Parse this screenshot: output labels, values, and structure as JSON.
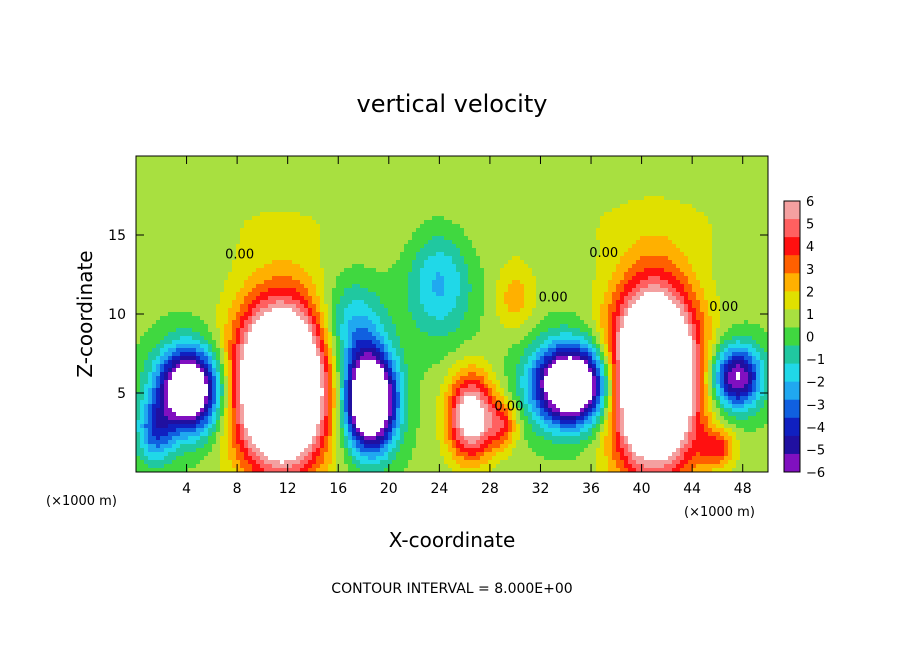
{
  "chart_data": {
    "type": "heatmap",
    "title": "vertical velocity",
    "xlabel": "X-coordinate",
    "ylabel": "Z-coordinate",
    "x_unit": "(×1000 m)",
    "x_unit_right": "(×1000 m)",
    "footer": "CONTOUR INTERVAL = 8.000E+00",
    "xlim": [
      0,
      50
    ],
    "ylim": [
      0,
      20
    ],
    "x_ticks": [
      4,
      8,
      12,
      16,
      20,
      24,
      28,
      32,
      36,
      40,
      44,
      48
    ],
    "y_ticks": [
      5,
      10,
      15
    ],
    "colorbar": {
      "range": [
        -6,
        6
      ],
      "ticks": [
        "6",
        "5",
        "4",
        "3",
        "2",
        "1",
        "0",
        "−1",
        "−2",
        "−3",
        "−4",
        "−5",
        "−6"
      ],
      "colors_high_to_low": [
        "#f4a0a0",
        "#ff6060",
        "#ff1010",
        "#ff6000",
        "#ffb000",
        "#e0e000",
        "#a8e040",
        "#40d840",
        "#20c8a0",
        "#20d8e8",
        "#20a8f0",
        "#1060e0",
        "#1020c0",
        "#2010a0",
        "#8010c0"
      ]
    },
    "contour_labels": [
      {
        "text": "0.00",
        "x": 8.2,
        "z": 13.5
      },
      {
        "text": "0.00",
        "x": 33.0,
        "z": 10.8
      },
      {
        "text": "0.00",
        "x": 37.0,
        "z": 13.6
      },
      {
        "text": "0.00",
        "x": 29.5,
        "z": 3.9
      },
      {
        "text": "0.00",
        "x": 46.5,
        "z": 10.2
      }
    ],
    "features": [
      {
        "name": "updraft",
        "x": 11.5,
        "z": 5.5,
        "sx": 3.5,
        "sz": 5.0,
        "w": 14
      },
      {
        "name": "updraft",
        "x": 41.0,
        "z": 6.0,
        "sx": 3.3,
        "sz": 5.5,
        "w": 14
      },
      {
        "name": "updraft",
        "x": 26.5,
        "z": 3.5,
        "sx": 1.8,
        "sz": 2.6,
        "w": 7
      },
      {
        "name": "updraft",
        "x": 29.0,
        "z": 3.0,
        "sx": 1.2,
        "sz": 1.5,
        "w": 3
      },
      {
        "name": "updraft",
        "x": 46.0,
        "z": 1.5,
        "sx": 1.4,
        "sz": 1.2,
        "w": 3
      },
      {
        "name": "updraft",
        "x": 30.0,
        "z": 11.0,
        "sx": 1.6,
        "sz": 2.0,
        "w": 1.8
      },
      {
        "name": "downdraft",
        "x": 4.2,
        "z": 5.2,
        "sx": 2.5,
        "sz": 2.6,
        "w": -10
      },
      {
        "name": "downdraft",
        "x": 18.5,
        "z": 4.5,
        "sx": 2.0,
        "sz": 3.0,
        "w": -12
      },
      {
        "name": "downdraft",
        "x": 34.5,
        "z": 5.5,
        "sx": 3.0,
        "sz": 2.5,
        "w": -11
      },
      {
        "name": "downdraft",
        "x": 47.5,
        "z": 6.0,
        "sx": 2.0,
        "sz": 2.0,
        "w": -7
      },
      {
        "name": "downdraft",
        "x": 24.0,
        "z": 12.0,
        "sx": 2.5,
        "sz": 3.5,
        "w": -2.8
      },
      {
        "name": "downdraft",
        "x": 17.0,
        "z": 9.0,
        "sx": 2.5,
        "sz": 3.0,
        "w": -3.0
      },
      {
        "name": "downdraft",
        "x": 1.5,
        "z": 2.5,
        "sx": 1.5,
        "sz": 2.0,
        "w": -3.5
      }
    ]
  }
}
